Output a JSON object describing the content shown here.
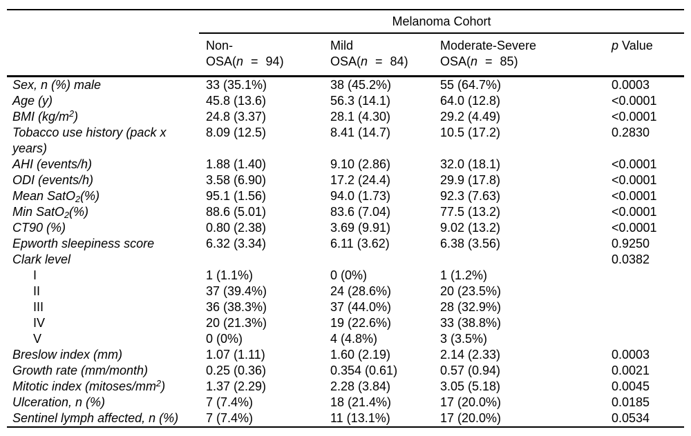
{
  "table": {
    "group_header": "Melanoma Cohort",
    "col_headers": [
      {
        "line1": "Non-",
        "osa": "OSA(",
        "n": "n",
        "eq": "=",
        "count": "94)"
      },
      {
        "line1": "Mild",
        "osa": "OSA(",
        "n": "n",
        "eq": "=",
        "count": "84)"
      },
      {
        "line1": "Moderate-Severe",
        "osa": "OSA(",
        "n": "n",
        "eq": "=",
        "count": "85)"
      }
    ],
    "p_header": {
      "p": "p",
      "value": "Value"
    },
    "rows": [
      {
        "label": "Sex, n (%) male",
        "values": [
          "33 (35.1%)",
          "38 (45.2%)",
          "55 (64.7%)"
        ],
        "p": "0.0003"
      },
      {
        "label": "Age (y)",
        "values": [
          "45.8 (13.6)",
          "56.3 (14.1)",
          "64.0 (12.8)"
        ],
        "p": "<0.0001"
      },
      {
        "label_parts": [
          {
            "t": "BMI (kg/m"
          },
          {
            "t": "2",
            "sup": true
          },
          {
            "t": ")"
          }
        ],
        "values": [
          "24.8 (3.37)",
          "28.1 (4.30)",
          "29.2 (4.49)"
        ],
        "p": "<0.0001"
      },
      {
        "label_parts": [
          {
            "t": "Tobacco use history (pack x"
          },
          {
            "br": true
          },
          {
            "t": "years)"
          }
        ],
        "values": [
          "8.09 (12.5)",
          "8.41 (14.7)",
          "10.5 (17.2)"
        ],
        "p": "0.2830"
      },
      {
        "label": "AHI (events/h)",
        "values": [
          "1.88 (1.40)",
          "9.10 (2.86)",
          "32.0 (18.1)"
        ],
        "p": "<0.0001"
      },
      {
        "label": "ODI (events/h)",
        "values": [
          "3.58 (6.90)",
          "17.2 (24.4)",
          "29.9 (17.8)"
        ],
        "p": "<0.0001"
      },
      {
        "label_parts": [
          {
            "t": "Mean SatO"
          },
          {
            "t": "2",
            "sub": true
          },
          {
            "t": "(%)"
          }
        ],
        "values": [
          "95.1 (1.56)",
          "94.0 (1.73)",
          "92.3 (7.63)"
        ],
        "p": "<0.0001"
      },
      {
        "label_parts": [
          {
            "t": "Min SatO"
          },
          {
            "t": "2",
            "sub": true
          },
          {
            "t": "(%)"
          }
        ],
        "values": [
          "88.6 (5.01)",
          "83.6 (7.04)",
          "77.5 (13.2)"
        ],
        "p": "<0.0001"
      },
      {
        "label": "CT90 (%)",
        "values": [
          "0.80 (2.38)",
          "3.69 (9.91)",
          "9.02 (13.2)"
        ],
        "p": "<0.0001"
      },
      {
        "label": "Epworth sleepiness score",
        "values": [
          "6.32 (3.34)",
          "6.11 (3.62)",
          "6.38 (3.56)"
        ],
        "p": "0.9250"
      },
      {
        "label": "Clark level",
        "values": [
          "",
          "",
          ""
        ],
        "p": "0.0382"
      },
      {
        "label": "I",
        "indent": true,
        "values": [
          "1 (1.1%)",
          "0 (0%)",
          "1 (1.2%)"
        ],
        "p": ""
      },
      {
        "label": "II",
        "indent": true,
        "values": [
          "37 (39.4%)",
          "24 (28.6%)",
          "20 (23.5%)"
        ],
        "p": ""
      },
      {
        "label": "III",
        "indent": true,
        "values": [
          "36 (38.3%)",
          "37 (44.0%)",
          "28 (32.9%)"
        ],
        "p": ""
      },
      {
        "label": "IV",
        "indent": true,
        "values": [
          "20 (21.3%)",
          "19 (22.6%)",
          "33 (38.8%)"
        ],
        "p": ""
      },
      {
        "label": "V",
        "indent": true,
        "values": [
          "0 (0%)",
          "4 (4.8%)",
          "3 (3.5%)"
        ],
        "p": ""
      },
      {
        "label": "Breslow index (mm)",
        "values": [
          "1.07 (1.11)",
          "1.60 (2.19)",
          "2.14 (2.33)"
        ],
        "p": "0.0003"
      },
      {
        "label": "Growth rate (mm/month)",
        "values": [
          "0.25 (0.36)",
          "0.354 (0.61)",
          "0.57 (0.94)"
        ],
        "p": "0.0021"
      },
      {
        "label_parts": [
          {
            "t": "Mitotic index (mitoses/mm"
          },
          {
            "t": "2",
            "sup": true
          },
          {
            "t": ")"
          }
        ],
        "values": [
          "1.37 (2.29)",
          "2.28 (3.84)",
          "3.05 (5.18)"
        ],
        "p": "0.0045"
      },
      {
        "label": "Ulceration, n (%)",
        "values": [
          "7 (7.4%)",
          "18 (21.4%)",
          "17 (20.0%)"
        ],
        "p": "0.0185"
      },
      {
        "label": "Sentinel lymph affected, n (%)",
        "values": [
          "7 (7.4%)",
          "11 (13.1%)",
          "17 (20.0%)"
        ],
        "p": "0.0534"
      }
    ]
  }
}
